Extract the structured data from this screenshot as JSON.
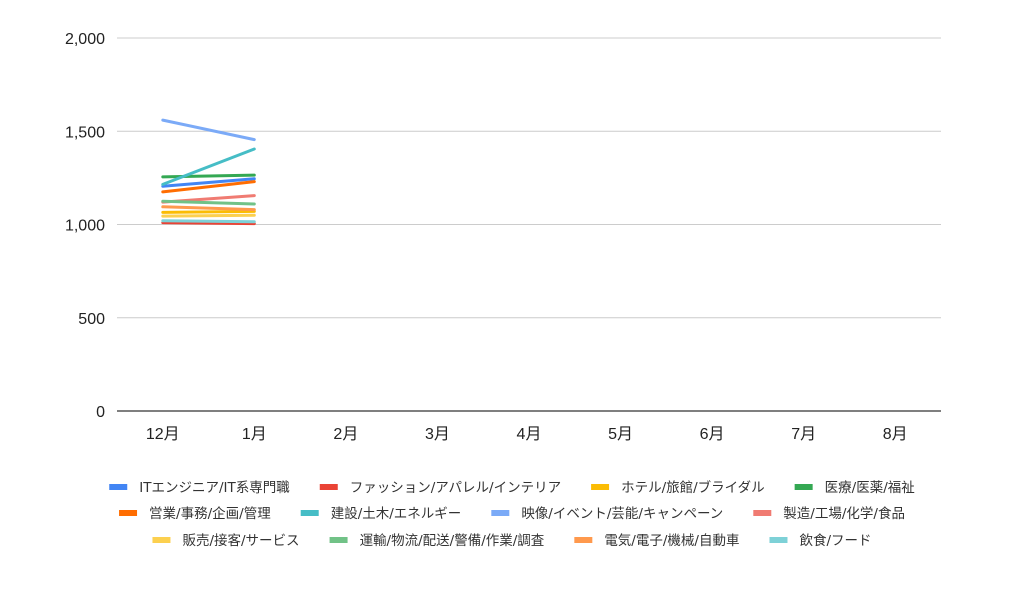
{
  "chart_data": {
    "type": "line",
    "title": "",
    "xlabel": "",
    "ylabel": "",
    "categories": [
      "12月",
      "1月",
      "2月",
      "3月",
      "4月",
      "5月",
      "6月",
      "7月",
      "8月"
    ],
    "ylim": [
      0,
      2000
    ],
    "yticks": [
      0,
      500,
      1000,
      1500,
      2000
    ],
    "ytick_labels": [
      "0",
      "500",
      "1,000",
      "1,500",
      "2,000"
    ],
    "grid": true,
    "legend_position": "bottom",
    "series": [
      {
        "name": "ITエンジニア/IT系専門職",
        "color": "#4285f4",
        "values": [
          1205,
          1245,
          null,
          null,
          null,
          null,
          null,
          null,
          null
        ]
      },
      {
        "name": "ファッション/アパレル/インテリア",
        "color": "#ea4335",
        "values": [
          1010,
          1005,
          null,
          null,
          null,
          null,
          null,
          null,
          null
        ]
      },
      {
        "name": "ホテル/旅館/ブライダル",
        "color": "#fbbc04",
        "values": [
          1065,
          1070,
          null,
          null,
          null,
          null,
          null,
          null,
          null
        ]
      },
      {
        "name": "医療/医薬/福祉",
        "color": "#34a853",
        "values": [
          1255,
          1265,
          null,
          null,
          null,
          null,
          null,
          null,
          null
        ]
      },
      {
        "name": "営業/事務/企画/管理",
        "color": "#ff6d01",
        "values": [
          1175,
          1230,
          null,
          null,
          null,
          null,
          null,
          null,
          null
        ]
      },
      {
        "name": "建設/土木/エネルギー",
        "color": "#46bdc6",
        "values": [
          1215,
          1405,
          null,
          null,
          null,
          null,
          null,
          null,
          null
        ]
      },
      {
        "name": "映像/イベント/芸能/キャンペーン",
        "color": "#7baaf7",
        "values": [
          1560,
          1455,
          null,
          null,
          null,
          null,
          null,
          null,
          null
        ]
      },
      {
        "name": "製造/工場/化学/食品",
        "color": "#f07b72",
        "values": [
          1120,
          1155,
          null,
          null,
          null,
          null,
          null,
          null,
          null
        ]
      },
      {
        "name": "販売/接客/サービス",
        "color": "#fcd04f",
        "values": [
          1045,
          1050,
          null,
          null,
          null,
          null,
          null,
          null,
          null
        ]
      },
      {
        "name": "運輸/物流/配送/警備/作業/調査",
        "color": "#71c287",
        "values": [
          1125,
          1110,
          null,
          null,
          null,
          null,
          null,
          null,
          null
        ]
      },
      {
        "name": "電気/電子/機械/自動車",
        "color": "#ff994d",
        "values": [
          1095,
          1080,
          null,
          null,
          null,
          null,
          null,
          null,
          null
        ]
      },
      {
        "name": "飲食/フード",
        "color": "#7ed1d7",
        "values": [
          1020,
          1015,
          null,
          null,
          null,
          null,
          null,
          null,
          null
        ]
      }
    ]
  }
}
